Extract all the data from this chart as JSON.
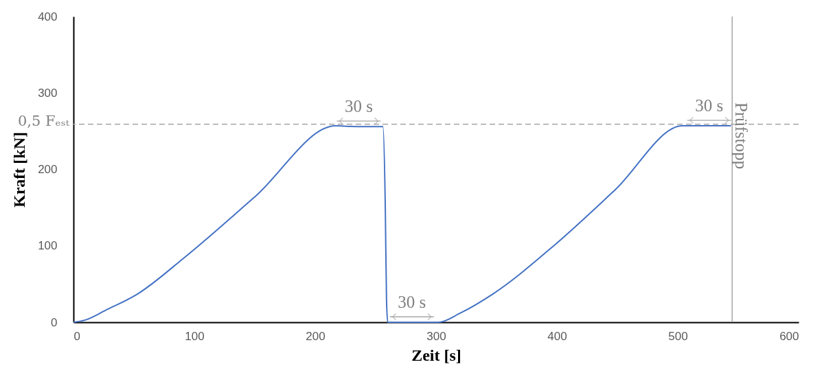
{
  "chart_data": {
    "type": "line",
    "xlabel": "Zeit [s]",
    "ylabel": "Kraft [kN]",
    "xlim": [
      0,
      600
    ],
    "xticks": [
      0,
      100,
      200,
      300,
      400,
      500,
      600
    ],
    "ylim": [
      0,
      400
    ],
    "yticks": [
      0,
      100,
      200,
      300,
      400
    ],
    "grid": false,
    "series": [
      {
        "color": "#4472c4",
        "x": [
          0,
          10,
          27,
          53,
          92,
          150,
          217,
          235,
          256,
          258,
          259,
          260,
          302,
          320,
          347,
          398,
          448,
          504,
          544
        ],
        "values": [
          0,
          3,
          16,
          37,
          85,
          164,
          257,
          256,
          256,
          150,
          30,
          0,
          0,
          12,
          37,
          101,
          173,
          257,
          257
        ]
      }
    ],
    "ref_lines": [
      {
        "axis": "y",
        "value": 259,
        "label": "0,5 Fₑₛₜ",
        "color": "#a6a6a6",
        "line_style": "dashed"
      },
      {
        "axis": "x",
        "value": 545,
        "label": "Prüfstopp",
        "color": "#a6a6a6",
        "line_style": "solid"
      }
    ],
    "annotations": [
      {
        "text": "30 s",
        "x": 236,
        "y": 256
      },
      {
        "text": "30 s",
        "x": 280,
        "y": 0
      },
      {
        "text": "30 s",
        "x": 526,
        "y": 257
      }
    ]
  }
}
